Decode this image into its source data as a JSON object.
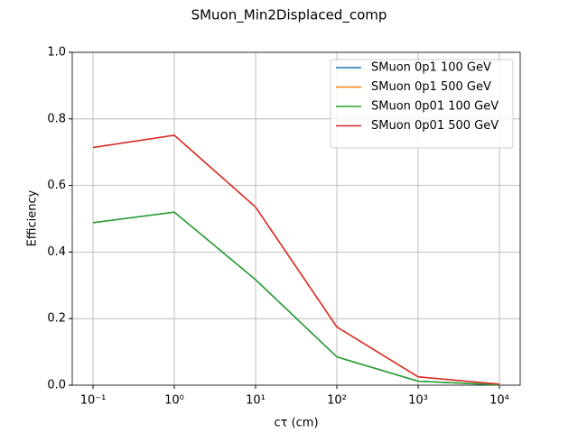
{
  "chart_data": {
    "type": "line",
    "title": "SMuon_Min2Displaced_comp",
    "x_label": "cτ (cm)",
    "y_label": "Efficiency",
    "x": [
      0.1,
      1,
      10,
      100,
      1000,
      10000
    ],
    "series": [
      {
        "name": "SMuon 0p1 100 GeV",
        "color": "#1f77b4",
        "values": [
          0.488,
          0.52,
          0.317,
          0.085,
          0.012,
          0.001
        ]
      },
      {
        "name": "SMuon 0p1 500 GeV",
        "color": "#ff7f0e",
        "values": [
          0.714,
          0.751,
          0.535,
          0.175,
          0.025,
          0.003
        ]
      },
      {
        "name": "SMuon 0p01 100 GeV",
        "color": "#2ca02c",
        "values": [
          0.488,
          0.52,
          0.317,
          0.085,
          0.012,
          0.001
        ]
      },
      {
        "name": "SMuon 0p01 500 GeV",
        "color": "#d62728",
        "values": [
          0.714,
          0.751,
          0.535,
          0.175,
          0.025,
          0.003
        ]
      }
    ],
    "x_log": true,
    "xlim": [
      0.0555,
      18020
    ],
    "xticks": [
      {
        "value": 0.1,
        "label": "10⁻¹"
      },
      {
        "value": 1,
        "label": "10⁰"
      },
      {
        "value": 10,
        "label": "10¹"
      },
      {
        "value": 100,
        "label": "10²"
      },
      {
        "value": 1000,
        "label": "10³"
      },
      {
        "value": 10000,
        "label": "10⁴"
      }
    ],
    "ylim": [
      0,
      1
    ],
    "yticks": [
      {
        "value": 0,
        "label": "0.0"
      },
      {
        "value": 0.2,
        "label": "0.2"
      },
      {
        "value": 0.4,
        "label": "0.4"
      },
      {
        "value": 0.6,
        "label": "0.6"
      },
      {
        "value": 0.8,
        "label": "0.8"
      },
      {
        "value": 1,
        "label": "1.0"
      }
    ],
    "grid": true,
    "legend": "upper right"
  }
}
